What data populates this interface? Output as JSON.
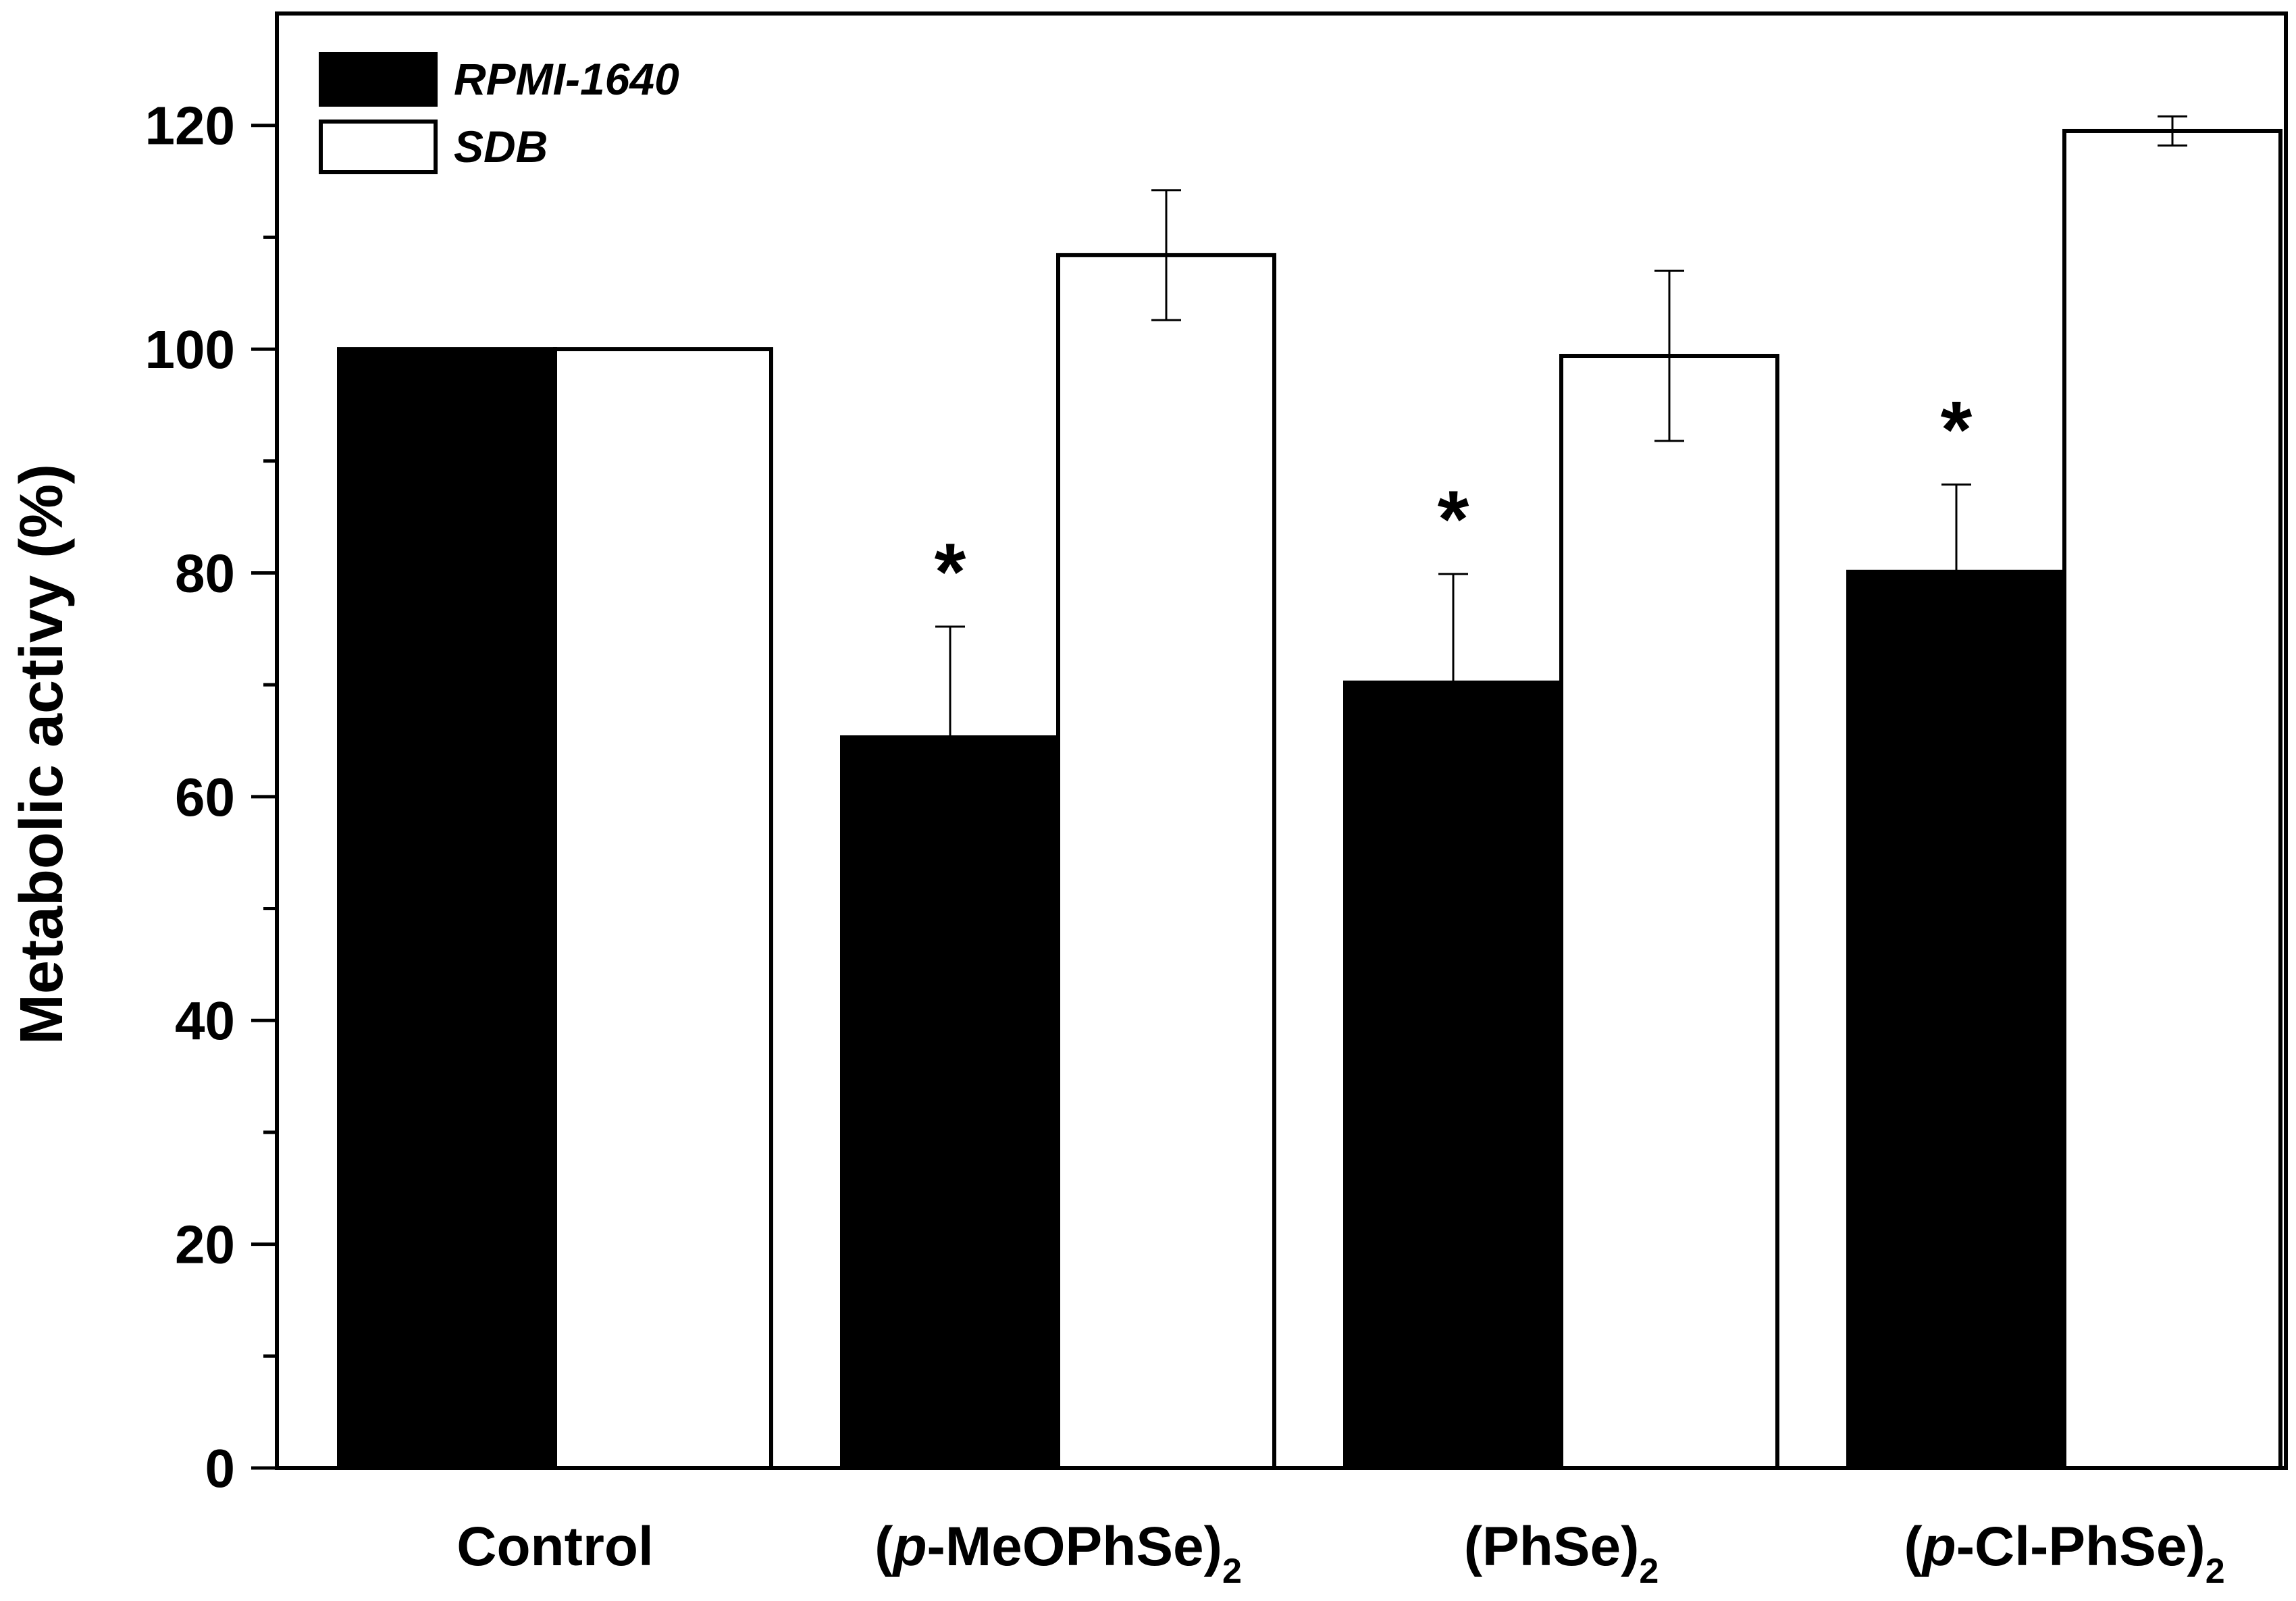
{
  "chart_data": {
    "type": "bar",
    "title": "",
    "xlabel": "",
    "ylabel": "Metabolic activy (%)",
    "ylim": [
      0,
      130
    ],
    "yticks": [
      0,
      20,
      40,
      60,
      80,
      100,
      120
    ],
    "grid": false,
    "legend_position": "top-left",
    "categories": [
      {
        "prefix": "",
        "italic": "",
        "main": "Control",
        "subscript": ""
      },
      {
        "prefix": "(",
        "italic": "p",
        "main": "-MeOPhSe)",
        "subscript": "2"
      },
      {
        "prefix": "",
        "italic": "",
        "main": "(PhSe)",
        "subscript": "2"
      },
      {
        "prefix": "(",
        "italic": "p",
        "main": "-Cl-PhSe)",
        "subscript": "2"
      }
    ],
    "series": [
      {
        "name": "RPMI-1640",
        "fill": "#000000",
        "values": [
          100,
          65.3,
          70.2,
          80.1
        ],
        "errors": [
          0,
          9.9,
          9.7,
          7.8
        ],
        "significance": [
          "",
          "*",
          "*",
          "*"
        ]
      },
      {
        "name": "SDB",
        "fill": "#ffffff",
        "values": [
          100,
          108.4,
          99.4,
          119.5
        ],
        "errors": [
          0,
          5.8,
          7.6,
          1.3
        ],
        "significance": [
          "",
          "",
          "",
          ""
        ]
      }
    ]
  }
}
